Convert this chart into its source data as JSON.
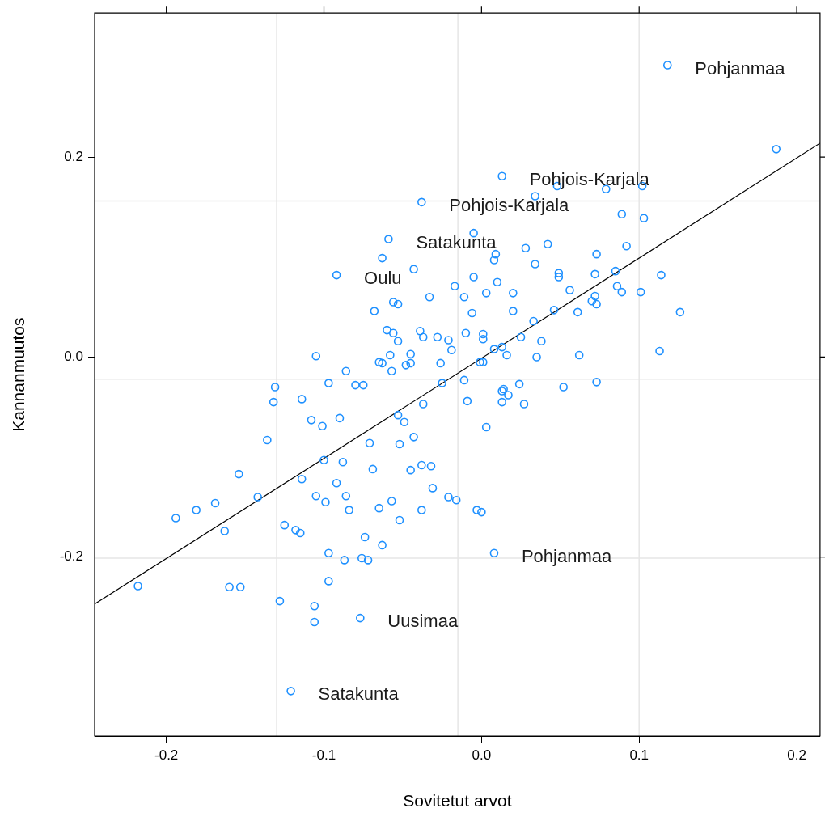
{
  "chart_data": {
    "type": "scatter",
    "xlabel": "Sovitetut arvot",
    "ylabel": "Kannanmuutos",
    "xlim": [
      -0.2455,
      0.2148
    ],
    "ylim": [
      -0.379,
      0.344
    ],
    "xticks": [
      -0.2,
      -0.1,
      {
        "value": 0,
        "label": "0.0"
      },
      0.1,
      0.2
    ],
    "yticks": [
      -0.2,
      {
        "value": 0,
        "label": "0.0"
      },
      0.2
    ],
    "grid": false,
    "marker": "circle",
    "ref_lines": [
      {
        "axis": "x",
        "value": -0.13,
        "color": "#e6e6e6"
      },
      {
        "axis": "x",
        "value": -0.015,
        "color": "#e6e6e6"
      },
      {
        "axis": "x",
        "value": 0.1,
        "color": "#e6e6e6"
      },
      {
        "axis": "y",
        "value": 0.156,
        "color": "#e6e6e6"
      },
      {
        "axis": "y",
        "value": -0.022,
        "color": "#e6e6e6"
      },
      {
        "axis": "y",
        "value": -0.201,
        "color": "#e6e6e6"
      }
    ],
    "series": [
      {
        "type": "scatter",
        "color": "#1e90ff",
        "x": [
          0.118,
          0.187,
          0.013,
          0.048,
          0.079,
          0.102,
          0.034,
          -0.038,
          -0.005,
          -0.059,
          0.089,
          0.103,
          0.092,
          0.073,
          0.028,
          0.042,
          0.009,
          0.008,
          0.034,
          0.049,
          0.049,
          0.056,
          -0.063,
          -0.092,
          -0.043,
          -0.005,
          -0.017,
          0.01,
          0.003,
          0.02,
          -0.011,
          -0.033,
          -0.056,
          -0.053,
          -0.068,
          -0.006,
          0.02,
          0.046,
          0.033,
          -0.06,
          -0.056,
          -0.053,
          -0.039,
          -0.037,
          -0.028,
          -0.021,
          -0.019,
          -0.01,
          0.001,
          0.001,
          0.025,
          0.038,
          0.035,
          0.008,
          0.013,
          0.016,
          -0.001,
          0.001,
          -0.026,
          -0.048,
          -0.045,
          -0.045,
          -0.058,
          -0.065,
          -0.063,
          -0.057,
          -0.086,
          -0.105,
          -0.097,
          -0.08,
          -0.075,
          0.072,
          0.085,
          0.114,
          0.086,
          0.089,
          0.101,
          0.072,
          0.07,
          0.073,
          0.061,
          0.126,
          0.062,
          0.113,
          0.073,
          -0.025,
          -0.011,
          0.013,
          0.014,
          0.017,
          0.013,
          0.024,
          0.052,
          -0.009,
          0.027,
          -0.037,
          0.003,
          -0.09,
          -0.053,
          -0.049,
          -0.101,
          -0.071,
          -0.052,
          -0.043,
          -0.1,
          -0.088,
          -0.069,
          -0.045,
          -0.038,
          -0.032,
          -0.092,
          -0.099,
          -0.086,
          -0.084,
          -0.057,
          -0.065,
          -0.052,
          -0.038,
          -0.031,
          -0.021,
          -0.016,
          -0.003,
          0.0,
          -0.074,
          -0.063,
          -0.097,
          -0.087,
          -0.076,
          -0.072,
          0.008,
          -0.097,
          -0.077,
          -0.131,
          -0.132,
          -0.114,
          -0.108,
          -0.136,
          -0.114,
          -0.154,
          -0.142,
          -0.169,
          -0.181,
          -0.194,
          -0.163,
          -0.105,
          -0.125,
          -0.118,
          -0.115,
          -0.218,
          -0.16,
          -0.153,
          -0.128,
          -0.106,
          -0.106,
          -0.121
        ],
        "values": [
          0.292,
          0.208,
          0.181,
          0.171,
          0.168,
          0.171,
          0.161,
          0.155,
          0.124,
          0.118,
          0.143,
          0.139,
          0.111,
          0.103,
          0.109,
          0.113,
          0.103,
          0.097,
          0.093,
          0.084,
          0.08,
          0.067,
          0.099,
          0.082,
          0.088,
          0.08,
          0.071,
          0.075,
          0.064,
          0.064,
          0.06,
          0.06,
          0.055,
          0.053,
          0.046,
          0.044,
          0.046,
          0.047,
          0.036,
          0.027,
          0.024,
          0.016,
          0.026,
          0.02,
          0.02,
          0.017,
          0.007,
          0.024,
          0.023,
          0.018,
          0.02,
          0.016,
          0.0,
          0.008,
          0.01,
          0.002,
          -0.005,
          -0.005,
          -0.006,
          -0.008,
          -0.006,
          0.003,
          0.002,
          -0.005,
          -0.006,
          -0.014,
          -0.014,
          0.001,
          -0.026,
          -0.028,
          -0.028,
          0.083,
          0.086,
          0.082,
          0.071,
          0.065,
          0.065,
          0.061,
          0.056,
          0.053,
          0.045,
          0.045,
          0.002,
          0.006,
          -0.025,
          -0.026,
          -0.023,
          -0.034,
          -0.032,
          -0.038,
          -0.045,
          -0.027,
          -0.03,
          -0.044,
          -0.047,
          -0.047,
          -0.07,
          -0.061,
          -0.058,
          -0.065,
          -0.069,
          -0.086,
          -0.087,
          -0.08,
          -0.103,
          -0.105,
          -0.112,
          -0.113,
          -0.108,
          -0.109,
          -0.126,
          -0.145,
          -0.139,
          -0.153,
          -0.144,
          -0.151,
          -0.163,
          -0.153,
          -0.131,
          -0.14,
          -0.143,
          -0.153,
          -0.155,
          -0.18,
          -0.188,
          -0.196,
          -0.203,
          -0.201,
          -0.203,
          -0.196,
          -0.224,
          -0.261,
          -0.03,
          -0.045,
          -0.042,
          -0.063,
          -0.083,
          -0.122,
          -0.117,
          -0.14,
          -0.146,
          -0.153,
          -0.161,
          -0.174,
          -0.139,
          -0.168,
          -0.173,
          -0.176,
          -0.229,
          -0.23,
          -0.23,
          -0.244,
          -0.249,
          -0.265,
          -0.334
        ]
      },
      {
        "type": "line",
        "color": "#000000",
        "marker": "none",
        "x": [
          -0.2455,
          0.2148
        ],
        "values": [
          -0.247,
          0.214
        ]
      }
    ],
    "annotations": [
      {
        "text": "Pohjanmaa",
        "x": 0.118,
        "y": 0.292
      },
      {
        "text": "Pohjois-Karjala",
        "x": 0.013,
        "y": 0.181
      },
      {
        "text": "Pohjois-Karjala",
        "x": -0.038,
        "y": 0.155
      },
      {
        "text": "Satakunta",
        "x": -0.059,
        "y": 0.118
      },
      {
        "text": "Oulu",
        "x": -0.092,
        "y": 0.082
      },
      {
        "text": "Pohjanmaa",
        "x": 0.008,
        "y": -0.196
      },
      {
        "text": "Uusimaa",
        "x": -0.077,
        "y": -0.261
      },
      {
        "text": "Satakunta",
        "x": -0.121,
        "y": -0.334
      }
    ]
  }
}
